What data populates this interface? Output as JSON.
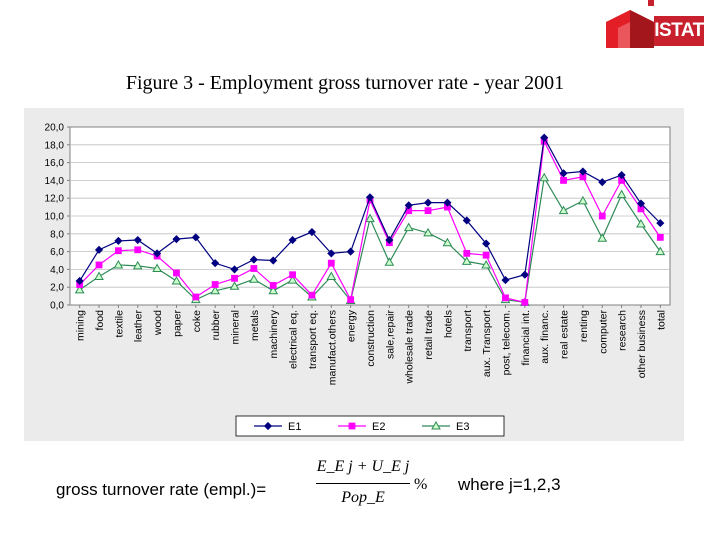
{
  "logo": {
    "text": "ISTAT"
  },
  "title": "Figure 3 - Employment gross turnover rate - year 2001",
  "formula": {
    "label": "gross turnover rate (empl.)=",
    "numerator": "E_E j + U_E j",
    "denominator": "Pop_E",
    "suffix": "%",
    "where": "where j=1,2,3"
  },
  "colors": {
    "E1": "#000080",
    "E2": "#ff00ff",
    "E3": "#2e8b57",
    "E3_marker_fill": "#ccffcc",
    "plot_background": "#ffffff",
    "frame_background": "#ebebeb"
  },
  "chart_data": {
    "type": "line",
    "ylim": [
      0,
      20
    ],
    "yticks": [
      "0,0",
      "2,0",
      "4,0",
      "6,0",
      "8,0",
      "10,0",
      "12,0",
      "14,0",
      "16,0",
      "18,0",
      "20,0"
    ],
    "grid": "horizontal",
    "legend_position": "bottom",
    "categories": [
      "mining",
      "food",
      "textile",
      "leather",
      "wood",
      "paper",
      "coke",
      "rubber",
      "mineral",
      "metals",
      "machinery",
      "electrical eq.",
      "transport eq.",
      "manufact.others",
      "energy",
      "construction",
      "sale,repair",
      "wholesale trade",
      "retail trade",
      "hotels",
      "transport",
      "aux. Transport",
      "post, telecom.",
      "financial int.",
      "aux. financ.",
      "real estate",
      "renting",
      "computer",
      "research",
      "other business",
      "total"
    ],
    "series": [
      {
        "name": "E1",
        "values": [
          2.7,
          6.2,
          7.2,
          7.3,
          5.8,
          7.4,
          7.6,
          4.7,
          4.0,
          5.1,
          5.0,
          7.3,
          8.2,
          5.8,
          6.0,
          12.1,
          7.3,
          11.2,
          11.5,
          11.5,
          9.5,
          6.9,
          2.8,
          3.4,
          18.8,
          14.8,
          15.0,
          13.8,
          14.6,
          11.4,
          9.2
        ]
      },
      {
        "name": "E2",
        "values": [
          2.3,
          4.5,
          6.1,
          6.2,
          5.5,
          3.6,
          0.9,
          2.3,
          3.0,
          4.1,
          2.2,
          3.4,
          1.1,
          4.7,
          0.6,
          11.8,
          7.0,
          10.6,
          10.6,
          11.0,
          5.8,
          5.6,
          0.8,
          0.3,
          18.4,
          14.0,
          14.4,
          10.0,
          14.0,
          10.8,
          7.6
        ]
      },
      {
        "name": "E3",
        "values": [
          1.7,
          3.2,
          4.5,
          4.4,
          4.1,
          2.7,
          0.6,
          1.6,
          2.1,
          2.9,
          1.6,
          2.8,
          0.9,
          3.2,
          0.5,
          9.7,
          4.8,
          8.7,
          8.1,
          7.0,
          4.9,
          4.5,
          0.6,
          0.3,
          14.3,
          10.6,
          11.7,
          7.5,
          12.4,
          9.1,
          6.0
        ]
      }
    ]
  }
}
